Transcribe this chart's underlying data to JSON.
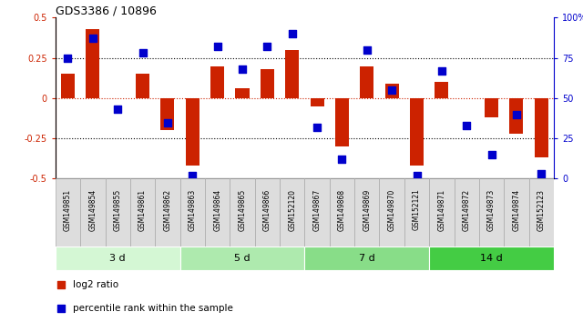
{
  "title": "GDS3386 / 10896",
  "samples": [
    "GSM149851",
    "GSM149854",
    "GSM149855",
    "GSM149861",
    "GSM149862",
    "GSM149863",
    "GSM149864",
    "GSM149865",
    "GSM149866",
    "GSM152120",
    "GSM149867",
    "GSM149868",
    "GSM149869",
    "GSM149870",
    "GSM152121",
    "GSM149871",
    "GSM149872",
    "GSM149873",
    "GSM149874",
    "GSM152123"
  ],
  "log2_ratio": [
    0.15,
    0.43,
    0.0,
    0.15,
    -0.2,
    -0.42,
    0.2,
    0.06,
    0.18,
    0.3,
    -0.05,
    -0.3,
    0.2,
    0.09,
    -0.42,
    0.1,
    0.0,
    -0.12,
    -0.22,
    -0.37
  ],
  "percentile": [
    75,
    87,
    43,
    78,
    35,
    2,
    82,
    68,
    82,
    90,
    32,
    12,
    80,
    55,
    2,
    67,
    33,
    15,
    40,
    3
  ],
  "groups": [
    {
      "label": "3 d",
      "start": 0,
      "end": 5,
      "color": "#d4f7d4"
    },
    {
      "label": "5 d",
      "start": 5,
      "end": 10,
      "color": "#aeeaae"
    },
    {
      "label": "7 d",
      "start": 10,
      "end": 15,
      "color": "#88dd88"
    },
    {
      "label": "14 d",
      "start": 15,
      "end": 20,
      "color": "#44cc44"
    }
  ],
  "bar_color": "#cc2200",
  "dot_color": "#0000cc",
  "ylim_left": [
    -0.5,
    0.5
  ],
  "ylim_right": [
    0,
    100
  ],
  "yticks_left": [
    -0.5,
    -0.25,
    0.0,
    0.25,
    0.5
  ],
  "ytick_labels_left": [
    "-0.5",
    "-0.25",
    "0",
    "0.25",
    "0.5"
  ],
  "yticks_right": [
    0,
    25,
    50,
    75,
    100
  ],
  "ytick_labels_right": [
    "0",
    "25",
    "50",
    "75",
    "100%"
  ],
  "legend_items": [
    {
      "label": "log2 ratio",
      "color": "#cc2200"
    },
    {
      "label": "percentile rank within the sample",
      "color": "#0000cc"
    }
  ],
  "plot_bg_color": "#ffffff",
  "bar_width": 0.55,
  "dot_size": 30,
  "sample_box_color": "#dddddd",
  "sample_box_edge": "#aaaaaa"
}
